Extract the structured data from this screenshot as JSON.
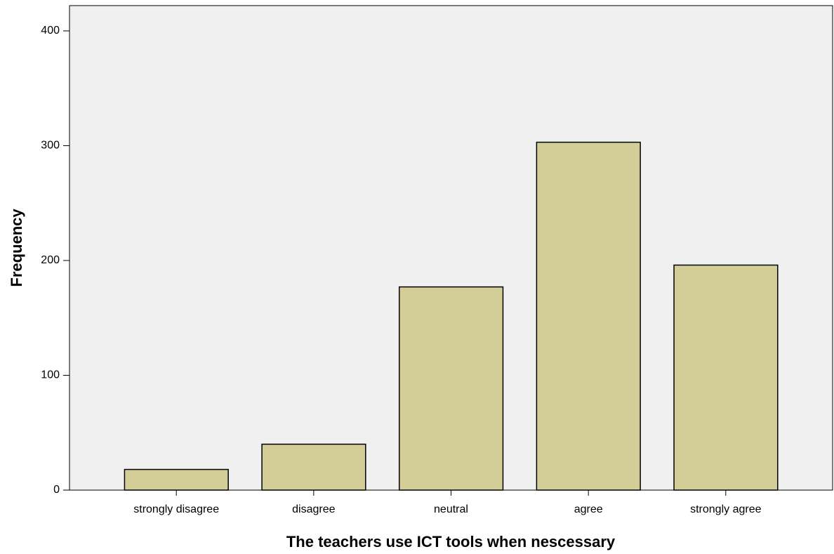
{
  "chart_data": {
    "type": "bar",
    "xlabel": "The teachers use ICT tools when nescessary",
    "ylabel": "Frequency",
    "categories": [
      "strongly disagree",
      "disagree",
      "neutral",
      "agree",
      "strongly agree"
    ],
    "values": [
      18,
      40,
      177,
      303,
      196
    ],
    "color": "#d3ce97",
    "ylim": [
      0,
      422
    ],
    "yticks": [
      0,
      100,
      200,
      300,
      400
    ],
    "grid": false
  }
}
